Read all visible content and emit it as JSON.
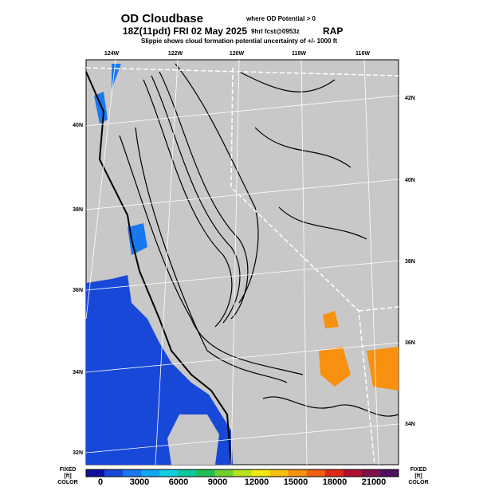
{
  "header": {
    "title": "OD Cloudbase",
    "title_note": "where OD Potential > 0",
    "time": "18Z(11pdt) FRI 02 May 2025",
    "forecast": "9hrl fcst@0953z",
    "model": "RAP",
    "subtitle": "Slippie shows cloud formation potential uncertainty of +/-  1000 ft"
  },
  "map": {
    "lon_labels": [
      "124W",
      "122W",
      "120W",
      "118W",
      "116W"
    ],
    "lat_labels_left": [
      "40N",
      "38N",
      "36N",
      "34N",
      "32N"
    ],
    "lat_labels_right": [
      "42N",
      "40N",
      "38N",
      "36N",
      "34N"
    ]
  },
  "colorbar": {
    "labels": [
      "0",
      "3000",
      "6000",
      "9000",
      "12000",
      "15000",
      "18000",
      "21000"
    ],
    "colors": [
      "#1010a0",
      "#1848d8",
      "#1878f0",
      "#10a8f0",
      "#10d0e0",
      "#10c8a0",
      "#20c050",
      "#70d030",
      "#b8e020",
      "#f0e810",
      "#f8c010",
      "#f89010",
      "#f06010",
      "#e02818",
      "#b01030",
      "#801048",
      "#501060"
    ],
    "left_top": "FIXED",
    "left_unit": "[ft]",
    "left_bottom": "COLOR",
    "right_top": "FIXED",
    "right_unit": "[ft]",
    "right_bottom": "COLOR"
  }
}
